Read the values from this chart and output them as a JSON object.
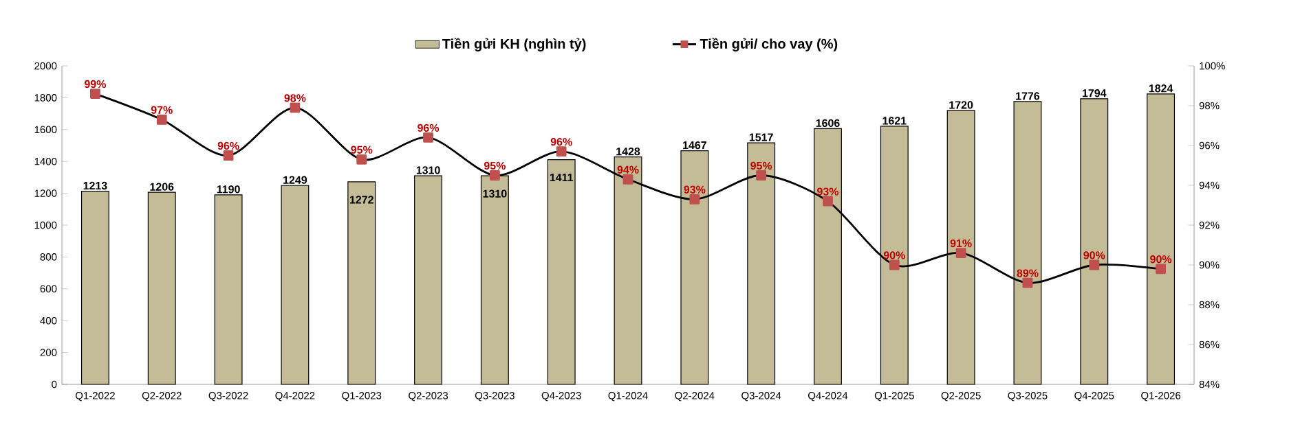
{
  "chart_data": {
    "type": "bar",
    "categories": [
      "Q1-2022",
      "Q2-2022",
      "Q3-2022",
      "Q4-2022",
      "Q1-2023",
      "Q2-2023",
      "Q3-2023",
      "Q4-2023",
      "Q1-2024",
      "Q2-2024",
      "Q3-2024",
      "Q4-2024",
      "Q1-2025",
      "Q2-2025",
      "Q3-2025",
      "Q4-2025",
      "Q1-2026"
    ],
    "series": [
      {
        "name": "Tiền gửi KH (nghìn tỷ)",
        "color": "#c4bc96",
        "values": [
          1213,
          1206,
          1190,
          1249,
          1272,
          1310,
          1310,
          1411,
          1428,
          1467,
          1517,
          1606,
          1621,
          1720,
          1776,
          1794,
          1824
        ],
        "value_labels": [
          "1213",
          "1206",
          "1190",
          "1249",
          "1272",
          "1310",
          "1310",
          "1411",
          "1428",
          "1467",
          "1517",
          "1606",
          "1621",
          "1720",
          "1776",
          "1794",
          "1824"
        ]
      },
      {
        "name": "Tiền gửi/ cho vay (%)",
        "type": "line",
        "axis": "y2",
        "color": "#c0504d",
        "marker": "square",
        "values": [
          98.6,
          97.3,
          95.5,
          97.9,
          95.3,
          96.4,
          94.5,
          95.7,
          94.3,
          93.3,
          94.5,
          93.2,
          90.0,
          90.6,
          89.1,
          90.0,
          89.8
        ],
        "value_labels": [
          "99%",
          "97%",
          "96%",
          "98%",
          "95%",
          "96%",
          "95%",
          "96%",
          "94%",
          "93%",
          "95%",
          "93%",
          "90%",
          "91%",
          "89%",
          "90%",
          "90%"
        ]
      }
    ],
    "ylim": [
      0,
      2000
    ],
    "yticks": [
      0,
      200,
      400,
      600,
      800,
      1000,
      1200,
      1400,
      1600,
      1800,
      2000
    ],
    "y2lim": [
      84,
      100
    ],
    "y2ticks": [
      {
        "value": 84,
        "label": "84%"
      },
      {
        "value": 86,
        "label": "86%"
      },
      {
        "value": 88,
        "label": "88%"
      },
      {
        "value": 90,
        "label": "90%"
      },
      {
        "value": 92,
        "label": "92%"
      },
      {
        "value": 94,
        "label": "94%"
      },
      {
        "value": 96,
        "label": "96%"
      },
      {
        "value": 98,
        "label": "98%"
      },
      {
        "value": 100,
        "label": "100%"
      }
    ],
    "legend": "top",
    "grid": false
  }
}
